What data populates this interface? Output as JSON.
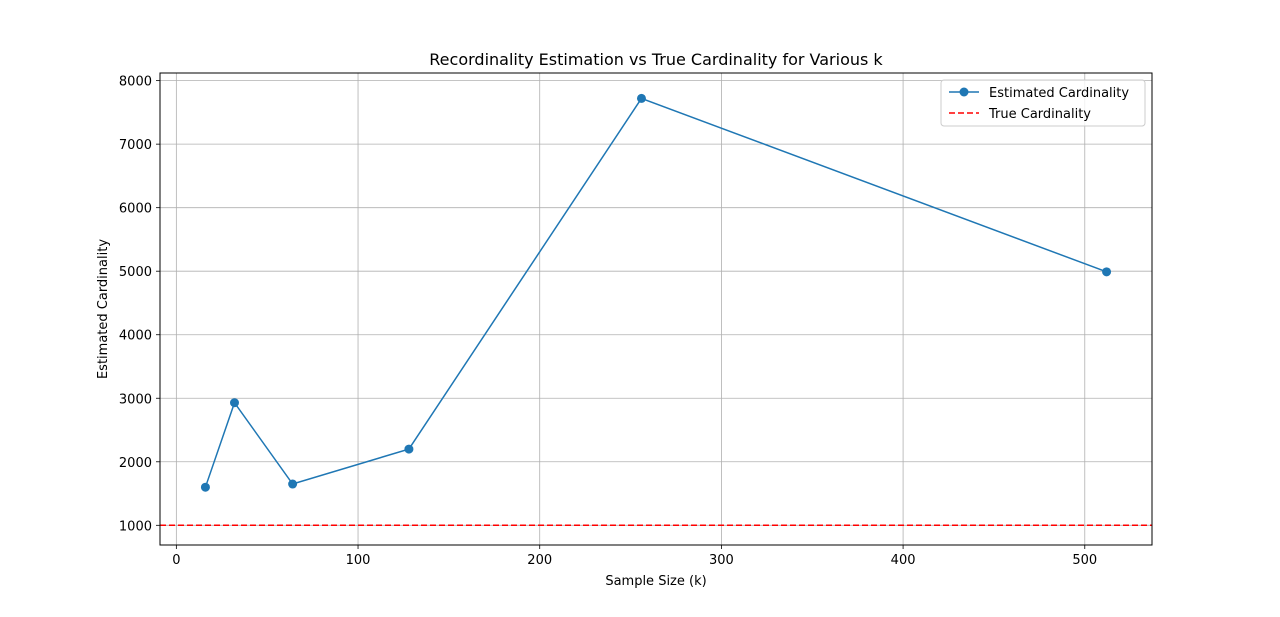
{
  "chart_data": {
    "type": "line",
    "title": "Recordinality Estimation vs True Cardinality for Various k",
    "xlabel": "Sample Size (k)",
    "ylabel": "Estimated Cardinality",
    "xlim": [
      -9,
      537
    ],
    "ylim": [
      690,
      8120
    ],
    "xticks": [
      0,
      100,
      200,
      300,
      400,
      500
    ],
    "yticks": [
      1000,
      2000,
      3000,
      4000,
      5000,
      6000,
      7000,
      8000
    ],
    "grid": true,
    "legend_position": "top-right",
    "series": [
      {
        "name": "Estimated Cardinality",
        "color": "#1f77b4",
        "marker": "circle",
        "x": [
          16,
          32,
          64,
          128,
          256,
          512
        ],
        "y": [
          1600,
          2930,
          1650,
          2200,
          7720,
          4990
        ]
      }
    ],
    "reference_lines": [
      {
        "name": "True Cardinality",
        "orientation": "horizontal",
        "value": 1000,
        "color": "#ff0000",
        "style": "dashed"
      }
    ]
  }
}
